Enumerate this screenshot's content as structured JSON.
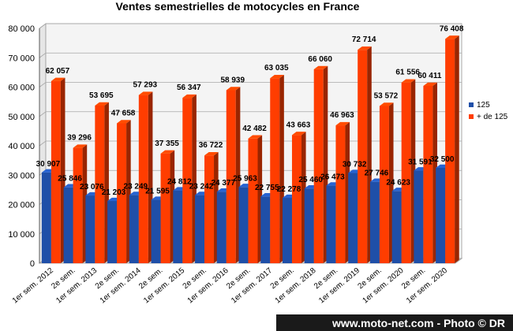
{
  "chart_data": {
    "type": "bar",
    "title": "Ventes semestrielles de motocycles en France",
    "categories": [
      "1er sem. 2012",
      "2e sem.",
      "1er sem. 2013",
      "2e sem.",
      "1er sem. 2014",
      "2e sem.",
      "1er sem. 2015",
      "2e sem.",
      "1er sem. 2016",
      "2e sem.",
      "1er sem. 2017",
      "2e sem.",
      "1er sem. 2018",
      "2e sem.",
      "1er sem. 2019",
      "2e sem.",
      "1er sem. 2020",
      "2e sem.",
      "1er sem. 2020"
    ],
    "series": [
      {
        "name": "125",
        "color": "#1f4fa8",
        "values": [
          30907,
          25846,
          23076,
          21203,
          23249,
          21595,
          24812,
          23242,
          24377,
          25963,
          22755,
          22278,
          25460,
          26473,
          30732,
          27746,
          24623,
          31591,
          32500
        ],
        "labels": [
          "30 907",
          "25 846",
          "23 076",
          "21 203",
          "23 249",
          "21 595",
          "24 812",
          "23 242",
          "24 377",
          "25 963",
          "22 755",
          "22 278",
          "25 460",
          "26 473",
          "30 732",
          "27 746",
          "24 623",
          "31 591",
          "32 500"
        ]
      },
      {
        "name": "+ de 125",
        "color": "#ff3d00",
        "values": [
          62057,
          39296,
          53695,
          47658,
          57293,
          37355,
          56347,
          36722,
          58939,
          42482,
          63035,
          43663,
          66060,
          46963,
          72714,
          53572,
          61556,
          60411,
          76408
        ],
        "labels": [
          "62 057",
          "39 296",
          "53 695",
          "47 658",
          "57 293",
          "37 355",
          "56 347",
          "36 722",
          "58 939",
          "42 482",
          "63 035",
          "43 663",
          "66 060",
          "46 963",
          "72 714",
          "53 572",
          "61 556",
          "60 411",
          "76 408"
        ]
      }
    ],
    "ylim": [
      0,
      80000
    ],
    "yticks": [
      "0",
      "10 000",
      "20 000",
      "30 000",
      "40 000",
      "50 000",
      "60 000",
      "70 000",
      "80 000"
    ],
    "grid": true,
    "legend": "right",
    "xlabel": "",
    "ylabel": ""
  },
  "footer": {
    "credit": "www.moto-net.com - Photo © DR",
    "background": "#1a1a1a"
  }
}
